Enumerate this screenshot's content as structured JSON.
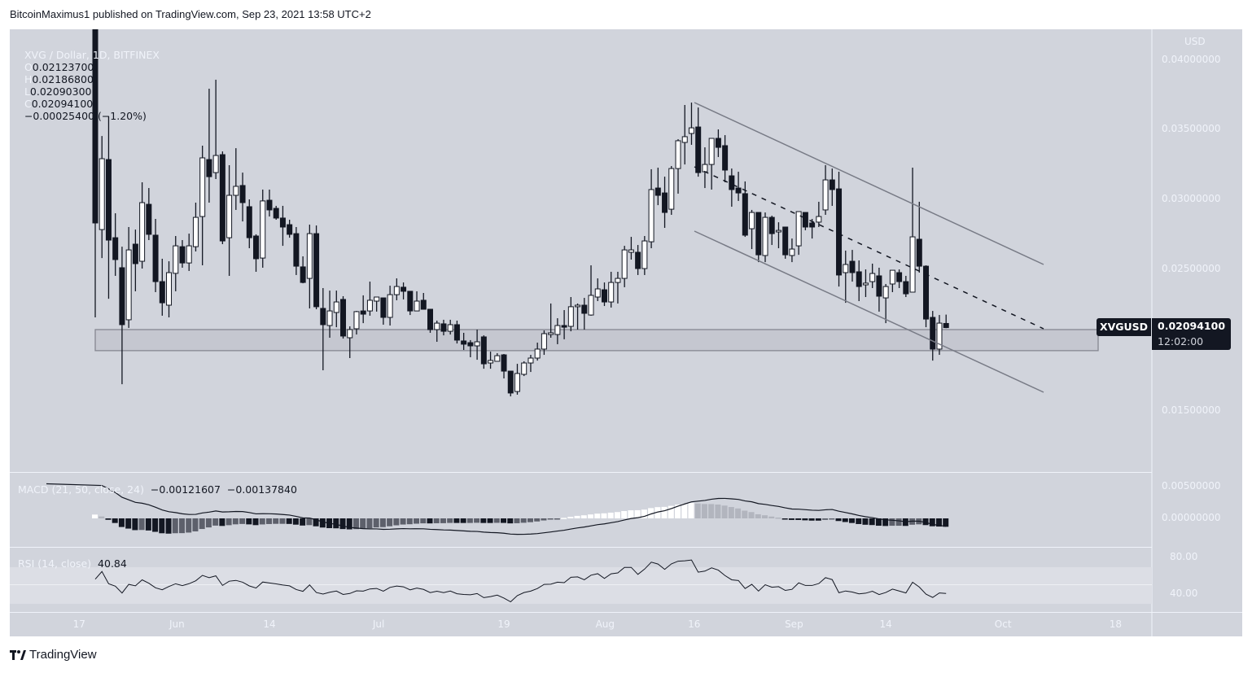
{
  "published": "BitcoinMaximus1 published on TradingView.com, Sep 23, 2021 13:58 UTC+2",
  "brand": "TradingView",
  "legend": {
    "symbol": "XVG / Dollar, 1D, BITFINEX",
    "o_label": "O",
    "open": "0.02123700",
    "h_label": "H",
    "high": "0.02186800",
    "l_label": "L",
    "low": "0.02090300",
    "c_label": "C",
    "close": "0.02094100",
    "change": "−0.00025400 (−1.20%)"
  },
  "price_axis": {
    "currency": "USD",
    "ticks": [
      "0.04000000",
      "0.03500000",
      "0.03000000",
      "0.02500000",
      "0.01500000"
    ],
    "last_symbol": "XVGUSD",
    "last_price": "0.02094100",
    "countdown": "12:02:00"
  },
  "macd": {
    "label": "MACD (21, 50, close, 24)",
    "macd_value": "−0.00121607",
    "signal_value": "−0.00137840",
    "ticks": [
      "0.00500000",
      "0.00000000"
    ]
  },
  "rsi": {
    "label": "RSI (14, close)",
    "value": "40.84",
    "ticks": [
      "80.00",
      "40.00"
    ]
  },
  "colors": {
    "background": "#d1d4dc",
    "up_body": "#ffffff",
    "down_body": "#131722",
    "drawing": "#787b86",
    "zone": "#c5c7d0"
  },
  "chart_data": {
    "type": "candlestick",
    "title": "XVG / Dollar, 1D, BITFINEX",
    "ylim": [
      0.0112,
      0.0422
    ],
    "x_ticks": [
      "17",
      "Jun",
      "14",
      "Jul",
      "19",
      "Aug",
      "16",
      "Sep",
      "14",
      "Oct",
      "18"
    ],
    "candles_ohlc": [
      [
        0.044,
        0.045,
        0.02167,
        0.0284
      ],
      [
        0.02793,
        0.0346,
        0.0259,
        0.03298
      ],
      [
        0.03292,
        0.036,
        0.023,
        0.02718
      ],
      [
        0.02735,
        0.02909,
        0.02463,
        0.02579
      ],
      [
        0.02521,
        0.02671,
        0.01691,
        0.02115
      ],
      [
        0.0215,
        0.02811,
        0.02092,
        0.02648
      ],
      [
        0.02689,
        0.02793,
        0.02353,
        0.0255
      ],
      [
        0.02567,
        0.0313,
        0.02515,
        0.02985
      ],
      [
        0.02973,
        0.03089,
        0.02718,
        0.02759
      ],
      [
        0.02753,
        0.02869,
        0.02347,
        0.02422
      ],
      [
        0.02422,
        0.02585,
        0.02179,
        0.02271
      ],
      [
        0.02254,
        0.02567,
        0.02167,
        0.02486
      ],
      [
        0.02481,
        0.02747,
        0.02353,
        0.02677
      ],
      [
        0.02671,
        0.02718,
        0.02521,
        0.02555
      ],
      [
        0.02555,
        0.02764,
        0.02498,
        0.02677
      ],
      [
        0.02671,
        0.02985,
        0.02637,
        0.0288
      ],
      [
        0.02886,
        0.03391,
        0.02538,
        0.03304
      ],
      [
        0.03292,
        0.03797,
        0.02985,
        0.0317
      ],
      [
        0.03199,
        0.03861,
        0.03153,
        0.03321
      ],
      [
        0.03327,
        0.0335,
        0.02689,
        0.02712
      ],
      [
        0.02735,
        0.03252,
        0.02463,
        0.03037
      ],
      [
        0.03037,
        0.03373,
        0.02933,
        0.03101
      ],
      [
        0.03107,
        0.03199,
        0.02851,
        0.02985
      ],
      [
        0.02956,
        0.03008,
        0.0266,
        0.02735
      ],
      [
        0.02747,
        0.02759,
        0.02492,
        0.02585
      ],
      [
        0.0259,
        0.03078,
        0.02521,
        0.02997
      ],
      [
        0.03002,
        0.03078,
        0.02886,
        0.02933
      ],
      [
        0.02944,
        0.02962,
        0.02863,
        0.02875
      ],
      [
        0.02875,
        0.02962,
        0.02677,
        0.02811
      ],
      [
        0.02828,
        0.02863,
        0.02735,
        0.02759
      ],
      [
        0.02764,
        0.02811,
        0.02469,
        0.02532
      ],
      [
        0.02527,
        0.02602,
        0.0241,
        0.02416
      ],
      [
        0.02445,
        0.02828,
        0.02231,
        0.02764
      ],
      [
        0.02764,
        0.02822,
        0.02225,
        0.02243
      ],
      [
        0.02231,
        0.02376,
        0.0179,
        0.02115
      ],
      [
        0.02109,
        0.02358,
        0.02022,
        0.02213
      ],
      [
        0.02202,
        0.02358,
        0.02097,
        0.02277
      ],
      [
        0.02295,
        0.02318,
        0.02016,
        0.02034
      ],
      [
        0.02022,
        0.02103,
        0.01877,
        0.0208
      ],
      [
        0.02086,
        0.02213,
        0.02045,
        0.02208
      ],
      [
        0.02213,
        0.02324,
        0.02126,
        0.0219
      ],
      [
        0.02213,
        0.02422,
        0.02179,
        0.02289
      ],
      [
        0.02283,
        0.02312,
        0.02208,
        0.02312
      ],
      [
        0.02306,
        0.02306,
        0.02115,
        0.02167
      ],
      [
        0.02167,
        0.02393,
        0.02109,
        0.02329
      ],
      [
        0.02329,
        0.02445,
        0.02289,
        0.02387
      ],
      [
        0.02382,
        0.02416,
        0.02295,
        0.02353
      ],
      [
        0.02353,
        0.02353,
        0.02184,
        0.02213
      ],
      [
        0.02213,
        0.02353,
        0.02213,
        0.02283
      ],
      [
        0.02289,
        0.02341,
        0.02225,
        0.02225
      ],
      [
        0.02225,
        0.02225,
        0.02057,
        0.0208
      ],
      [
        0.0208,
        0.02144,
        0.01993,
        0.02126
      ],
      [
        0.02121,
        0.0215,
        0.02039,
        0.02068
      ],
      [
        0.02068,
        0.0215,
        0.02045,
        0.02115
      ],
      [
        0.02115,
        0.02144,
        0.01981,
        0.02005
      ],
      [
        0.01999,
        0.02057,
        0.01935,
        0.01976
      ],
      [
        0.01987,
        0.02005,
        0.01883,
        0.01964
      ],
      [
        0.01964,
        0.0208,
        0.01865,
        0.01993
      ],
      [
        0.02028,
        0.02039,
        0.01801,
        0.01836
      ],
      [
        0.01842,
        0.01923,
        0.01801,
        0.0186
      ],
      [
        0.01854,
        0.01912,
        0.01854,
        0.01894
      ],
      [
        0.019,
        0.01906,
        0.01732,
        0.01784
      ],
      [
        0.01784,
        0.01784,
        0.01604,
        0.01628
      ],
      [
        0.01639,
        0.01836,
        0.01616,
        0.01767
      ],
      [
        0.01761,
        0.01854,
        0.01749,
        0.01842
      ],
      [
        0.01842,
        0.019,
        0.01778,
        0.01877
      ],
      [
        0.01877,
        0.01987,
        0.01859,
        0.01941
      ],
      [
        0.01941,
        0.02074,
        0.019,
        0.02051
      ],
      [
        0.02045,
        0.02266,
        0.02022,
        0.02057
      ],
      [
        0.02045,
        0.02161,
        0.01976,
        0.02109
      ],
      [
        0.02109,
        0.02219,
        0.02011,
        0.02097
      ],
      [
        0.02103,
        0.02312,
        0.02068,
        0.02243
      ],
      [
        0.02243,
        0.02266,
        0.0208,
        0.02254
      ],
      [
        0.02254,
        0.02306,
        0.0208,
        0.02196
      ],
      [
        0.02184,
        0.02538,
        0.02179,
        0.02324
      ],
      [
        0.02312,
        0.02445,
        0.02283,
        0.0237
      ],
      [
        0.02364,
        0.02416,
        0.02248,
        0.02277
      ],
      [
        0.02277,
        0.02492,
        0.02237,
        0.02416
      ],
      [
        0.02416,
        0.02492,
        0.02266,
        0.02445
      ],
      [
        0.02445,
        0.02677,
        0.02382,
        0.02648
      ],
      [
        0.02631,
        0.02741,
        0.02579,
        0.02648
      ],
      [
        0.02631,
        0.02683,
        0.02469,
        0.02515
      ],
      [
        0.02515,
        0.02747,
        0.02469,
        0.02712
      ],
      [
        0.02706,
        0.03223,
        0.0266,
        0.03078
      ],
      [
        0.03089,
        0.03234,
        0.02967,
        0.03037
      ],
      [
        0.03054,
        0.0317,
        0.02805,
        0.02915
      ],
      [
        0.02938,
        0.03246,
        0.02898,
        0.03228
      ],
      [
        0.03228,
        0.03437,
        0.03049,
        0.03426
      ],
      [
        0.03414,
        0.03681,
        0.03257,
        0.03455
      ],
      [
        0.03478,
        0.03698,
        0.03397,
        0.03518
      ],
      [
        0.03524,
        0.03663,
        0.0317,
        0.03199
      ],
      [
        0.03205,
        0.03379,
        0.03089,
        0.03257
      ],
      [
        0.03257,
        0.03443,
        0.03078,
        0.03443
      ],
      [
        0.03443,
        0.03507,
        0.0331,
        0.03379
      ],
      [
        0.03391,
        0.03466,
        0.0313,
        0.03217
      ],
      [
        0.03176,
        0.03228,
        0.02956,
        0.03078
      ],
      [
        0.03089,
        0.03205,
        0.02997,
        0.03054
      ],
      [
        0.03049,
        0.03136,
        0.02741,
        0.02753
      ],
      [
        0.02799,
        0.02933,
        0.02654,
        0.02915
      ],
      [
        0.02915,
        0.02915,
        0.02561,
        0.02613
      ],
      [
        0.02608,
        0.02915,
        0.02561,
        0.0288
      ],
      [
        0.0288,
        0.02892,
        0.02683,
        0.02764
      ],
      [
        0.02776,
        0.02845,
        0.0266,
        0.02787
      ],
      [
        0.02811,
        0.02811,
        0.02585,
        0.02613
      ],
      [
        0.02608,
        0.02729,
        0.02561,
        0.02654
      ],
      [
        0.02677,
        0.02921,
        0.02613,
        0.02921
      ],
      [
        0.02915,
        0.02915,
        0.02788,
        0.02811
      ],
      [
        0.0284,
        0.02869,
        0.02729,
        0.02811
      ],
      [
        0.02846,
        0.02991,
        0.02811,
        0.02886
      ],
      [
        0.02933,
        0.03252,
        0.02898,
        0.03147
      ],
      [
        0.03147,
        0.03228,
        0.02962,
        0.03078
      ],
      [
        0.03083,
        0.03205,
        0.02387,
        0.02469
      ],
      [
        0.02486,
        0.02643,
        0.02271,
        0.02544
      ],
      [
        0.02567,
        0.02648,
        0.02422,
        0.02486
      ],
      [
        0.02492,
        0.02573,
        0.02283,
        0.02387
      ],
      [
        0.02399,
        0.02509,
        0.02312,
        0.02411
      ],
      [
        0.02422,
        0.0255,
        0.02376,
        0.0248
      ],
      [
        0.02463,
        0.02521,
        0.02208,
        0.02318
      ],
      [
        0.02306,
        0.02405,
        0.02126,
        0.02387
      ],
      [
        0.02405,
        0.02503,
        0.02347,
        0.02503
      ],
      [
        0.02486,
        0.02509,
        0.02376,
        0.02422
      ],
      [
        0.02422,
        0.02463,
        0.02312,
        0.02335
      ],
      [
        0.02347,
        0.03234,
        0.02347,
        0.02741
      ],
      [
        0.02724,
        0.02991,
        0.02486,
        0.02532
      ],
      [
        0.02532,
        0.02538,
        0.02097,
        0.02155
      ],
      [
        0.02167,
        0.02213,
        0.01859,
        0.01941
      ],
      [
        0.01941,
        0.02184,
        0.019,
        0.02126
      ],
      [
        0.021237,
        0.021868,
        0.020903,
        0.020941
      ]
    ],
    "support_zone": [
      0.0193,
      0.0208
    ],
    "grid": false
  }
}
